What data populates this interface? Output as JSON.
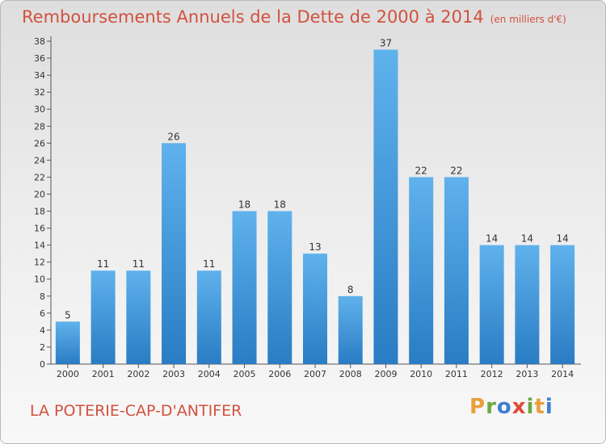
{
  "chart_data": {
    "type": "bar",
    "title": "Remboursements Annuels de la Dette de 2000 à 2014",
    "unit": "(en milliers d'€)",
    "categories": [
      "2000",
      "2001",
      "2002",
      "2003",
      "2004",
      "2005",
      "2006",
      "2007",
      "2008",
      "2009",
      "2010",
      "2011",
      "2012",
      "2013",
      "2014"
    ],
    "values": [
      5,
      11,
      11,
      26,
      11,
      18,
      18,
      13,
      8,
      37,
      22,
      22,
      14,
      14,
      14
    ],
    "ylim": [
      0,
      38
    ],
    "yticks": [
      0,
      2,
      4,
      6,
      8,
      10,
      12,
      14,
      16,
      18,
      20,
      22,
      24,
      26,
      28,
      30,
      32,
      34,
      36,
      38
    ],
    "grid": false,
    "bar_color": "#3b8fd6"
  },
  "commune": "LA POTERIE-CAP-D'ANTIFER",
  "logo": {
    "letters": [
      {
        "ch": "P",
        "color": "#e8a13a"
      },
      {
        "ch": "r",
        "color": "#6aa843"
      },
      {
        "ch": "o",
        "color": "#3f7fd0"
      },
      {
        "ch": "x",
        "color": "#e04a3a"
      },
      {
        "ch": "i",
        "color": "#6aa843"
      },
      {
        "ch": "t",
        "color": "#e8a13a"
      },
      {
        "ch": "i",
        "color": "#3f7fd0"
      }
    ]
  }
}
